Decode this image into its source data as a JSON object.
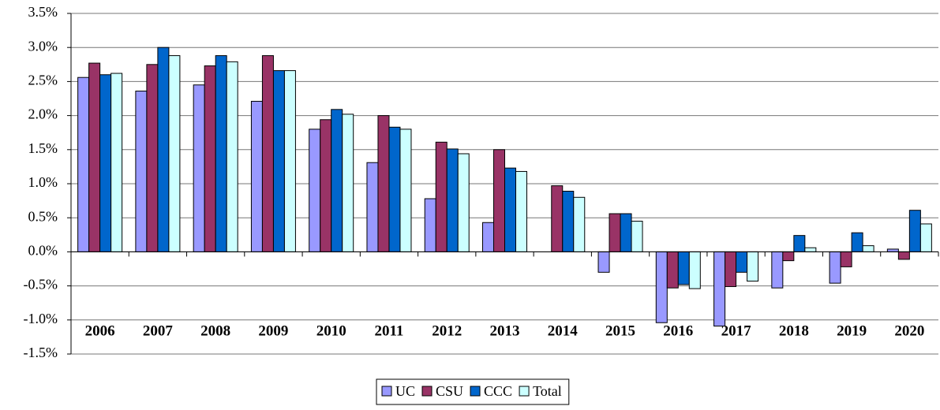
{
  "chart_data": {
    "type": "bar",
    "categories": [
      "2006",
      "2007",
      "2008",
      "2009",
      "2010",
      "2011",
      "2012",
      "2013",
      "2014",
      "2015",
      "2016",
      "2017",
      "2018",
      "2019",
      "2020"
    ],
    "series": [
      {
        "name": "UC",
        "color": "#9999ff",
        "values": [
          2.56,
          2.36,
          2.45,
          2.21,
          1.8,
          1.31,
          0.78,
          0.43,
          0.0,
          -0.3,
          -1.04,
          -1.09,
          -0.53,
          -0.46,
          0.04
        ]
      },
      {
        "name": "CSU",
        "color": "#993366",
        "values": [
          2.77,
          2.75,
          2.73,
          2.88,
          1.94,
          2.0,
          1.61,
          1.5,
          0.97,
          0.56,
          -0.53,
          -0.51,
          -0.13,
          -0.22,
          -0.11
        ]
      },
      {
        "name": "CCC",
        "color": "#0066cc",
        "values": [
          2.6,
          3.0,
          2.88,
          2.66,
          2.09,
          1.83,
          1.51,
          1.23,
          0.89,
          0.56,
          -0.48,
          -0.3,
          0.24,
          0.28,
          0.61
        ]
      },
      {
        "name": "Total",
        "color": "#ccffff",
        "values": [
          2.62,
          2.88,
          2.79,
          2.66,
          2.02,
          1.8,
          1.44,
          1.18,
          0.8,
          0.45,
          -0.54,
          -0.43,
          0.06,
          0.09,
          0.41
        ]
      }
    ],
    "ylim": [
      -1.5,
      3.5
    ],
    "yticks": [
      {
        "value": -1.5,
        "label": "-1.5%"
      },
      {
        "value": -1.0,
        "label": "-1.0%"
      },
      {
        "value": -0.5,
        "label": "-0.5%"
      },
      {
        "value": 0.0,
        "label": "0.0%"
      },
      {
        "value": 0.5,
        "label": "0.5%"
      },
      {
        "value": 1.0,
        "label": "1.0%"
      },
      {
        "value": 1.5,
        "label": "1.5%"
      },
      {
        "value": 2.0,
        "label": "2.0%"
      },
      {
        "value": 2.5,
        "label": "2.5%"
      },
      {
        "value": 3.0,
        "label": "3.0%"
      },
      {
        "value": 3.5,
        "label": "3.5%"
      }
    ],
    "grid": true,
    "legend": "bottom"
  }
}
